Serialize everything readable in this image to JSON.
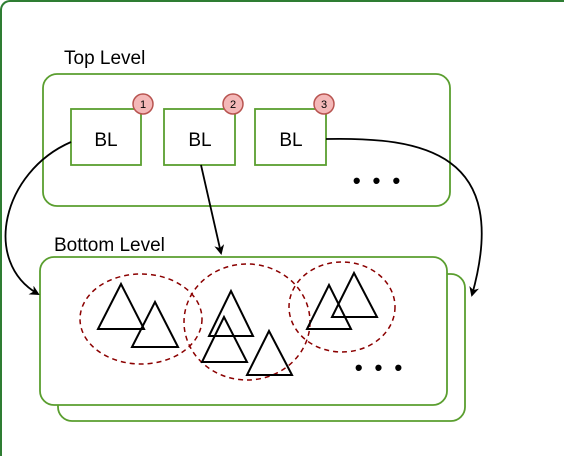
{
  "diagram": {
    "top_level": {
      "label": "Top Level",
      "blocks": [
        {
          "label": "BL",
          "badge": "1"
        },
        {
          "label": "BL",
          "badge": "2"
        },
        {
          "label": "BL",
          "badge": "3"
        }
      ],
      "ellipsis": "• • •"
    },
    "bottom_level": {
      "label": "Bottom Level",
      "ellipsis": "• • •"
    },
    "colors": {
      "container_border": "#5a9e2f",
      "badge_fill": "#f4b8b8",
      "badge_border": "#b85450",
      "cluster_dash": "#8b0000",
      "arrow": "#000000"
    }
  }
}
